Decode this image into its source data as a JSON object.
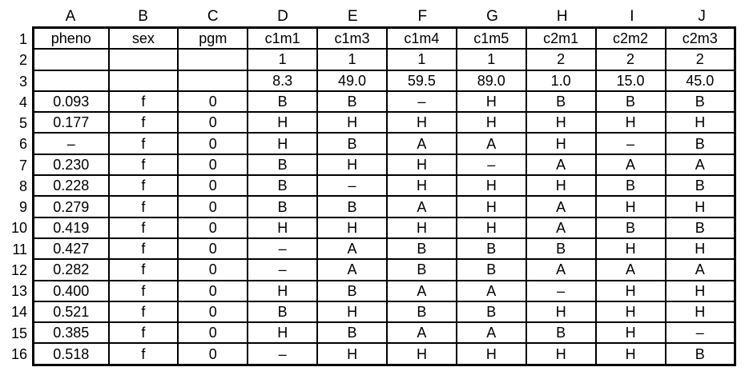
{
  "sheet": {
    "column_letters": [
      "A",
      "B",
      "C",
      "D",
      "E",
      "F",
      "G",
      "H",
      "I",
      "J"
    ],
    "row_numbers": [
      "1",
      "2",
      "3",
      "4",
      "5",
      "6",
      "7",
      "8",
      "9",
      "10",
      "11",
      "12",
      "13",
      "14",
      "15",
      "16"
    ],
    "cells": [
      [
        "pheno",
        "sex",
        "pgm",
        "c1m1",
        "c1m3",
        "c1m4",
        "c1m5",
        "c2m1",
        "c2m2",
        "c2m3"
      ],
      [
        "",
        "",
        "",
        "1",
        "1",
        "1",
        "1",
        "2",
        "2",
        "2"
      ],
      [
        "",
        "",
        "",
        "8.3",
        "49.0",
        "59.5",
        "89.0",
        "1.0",
        "15.0",
        "45.0"
      ],
      [
        "0.093",
        "f",
        "0",
        "B",
        "B",
        "–",
        "H",
        "B",
        "B",
        "B"
      ],
      [
        "0.177",
        "f",
        "0",
        "H",
        "H",
        "H",
        "H",
        "H",
        "H",
        "H"
      ],
      [
        "–",
        "f",
        "0",
        "H",
        "B",
        "A",
        "A",
        "H",
        "–",
        "B"
      ],
      [
        "0.230",
        "f",
        "0",
        "B",
        "H",
        "H",
        "–",
        "A",
        "A",
        "A"
      ],
      [
        "0.228",
        "f",
        "0",
        "B",
        "–",
        "H",
        "H",
        "H",
        "B",
        "B"
      ],
      [
        "0.279",
        "f",
        "0",
        "B",
        "B",
        "A",
        "H",
        "A",
        "H",
        "H"
      ],
      [
        "0.419",
        "f",
        "0",
        "H",
        "H",
        "H",
        "H",
        "A",
        "B",
        "B"
      ],
      [
        "0.427",
        "f",
        "0",
        "–",
        "A",
        "B",
        "B",
        "B",
        "H",
        "H"
      ],
      [
        "0.282",
        "f",
        "0",
        "–",
        "A",
        "B",
        "B",
        "A",
        "A",
        "A"
      ],
      [
        "0.400",
        "f",
        "0",
        "H",
        "B",
        "A",
        "A",
        "–",
        "H",
        "H"
      ],
      [
        "0.521",
        "f",
        "0",
        "B",
        "H",
        "B",
        "B",
        "H",
        "H",
        "H"
      ],
      [
        "0.385",
        "f",
        "0",
        "H",
        "B",
        "A",
        "A",
        "B",
        "H",
        "–"
      ],
      [
        "0.518",
        "f",
        "0",
        "–",
        "H",
        "H",
        "H",
        "H",
        "H",
        "B"
      ]
    ]
  },
  "colors": {
    "background": "#ffffff",
    "grid_line": "#000000",
    "text": "#000000"
  }
}
